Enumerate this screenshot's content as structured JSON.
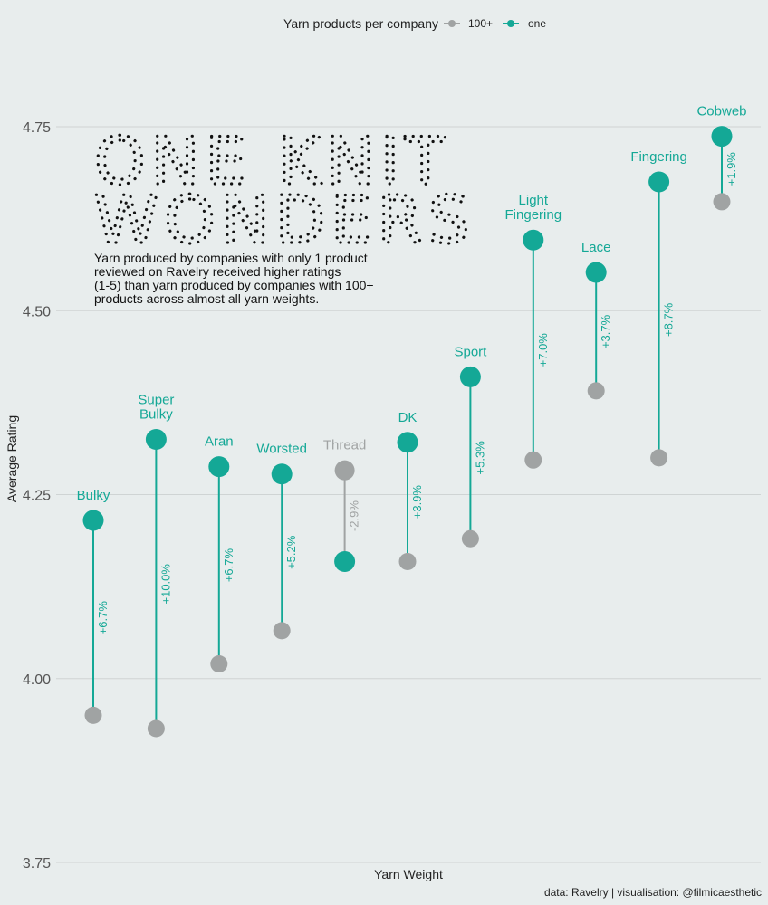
{
  "legend": {
    "title": "Yarn products per company",
    "items": [
      {
        "label": "100+",
        "color": "#a0a3a3"
      },
      {
        "label": "one",
        "color": "#14a896"
      }
    ]
  },
  "heading": {
    "title_lines": [
      "ONE KNIT",
      "WONDERS"
    ],
    "subtitle_lines": [
      "Yarn produced by companies with only 1 product",
      "reviewed on Ravelry received higher ratings",
      "(1-5) than yarn produced by companies with 100+",
      "products across almost all yarn weights."
    ]
  },
  "caption": "data: Ravelry | visualisation: @filmicaesthetic",
  "colors": {
    "background": "#e8eded",
    "grid": "#cfd4d4",
    "positive": "#14a896",
    "negative": "#a0a3a3"
  },
  "chart_data": {
    "type": "dumbbell",
    "xlabel": "Yarn Weight",
    "ylabel": "Average Rating",
    "ylim": [
      3.75,
      4.8
    ],
    "yticks": [
      "3.75",
      "4.00",
      "4.25",
      "4.50",
      "4.75"
    ],
    "grid": true,
    "legend_position": "top",
    "series": [
      {
        "name": "100+",
        "key": "hundred"
      },
      {
        "name": "one",
        "key": "one"
      }
    ],
    "categories": [
      {
        "label": [
          "Bulky"
        ],
        "hundred": 3.95,
        "one": 4.215,
        "change": "+6.7%"
      },
      {
        "label": [
          "Super",
          "Bulky"
        ],
        "hundred": 3.932,
        "one": 4.325,
        "change": "+10.0%"
      },
      {
        "label": [
          "Aran"
        ],
        "hundred": 4.02,
        "one": 4.288,
        "change": "+6.7%"
      },
      {
        "label": [
          "Worsted"
        ],
        "hundred": 4.065,
        "one": 4.278,
        "change": "+5.2%"
      },
      {
        "label": [
          "Thread"
        ],
        "hundred": 4.283,
        "one": 4.159,
        "change": "-2.9%"
      },
      {
        "label": [
          "DK"
        ],
        "hundred": 4.159,
        "one": 4.321,
        "change": "+3.9%"
      },
      {
        "label": [
          "Sport"
        ],
        "hundred": 4.19,
        "one": 4.41,
        "change": "+5.3%"
      },
      {
        "label": [
          "Light",
          "Fingering"
        ],
        "hundred": 4.297,
        "one": 4.596,
        "change": "+7.0%"
      },
      {
        "label": [
          "Lace"
        ],
        "hundred": 4.391,
        "one": 4.552,
        "change": "+3.7%"
      },
      {
        "label": [
          "Fingering"
        ],
        "hundred": 4.3,
        "one": 4.675,
        "change": "+8.7%"
      },
      {
        "label": [
          "Cobweb"
        ],
        "hundred": 4.648,
        "one": 4.737,
        "change": "+1.9%"
      }
    ]
  }
}
